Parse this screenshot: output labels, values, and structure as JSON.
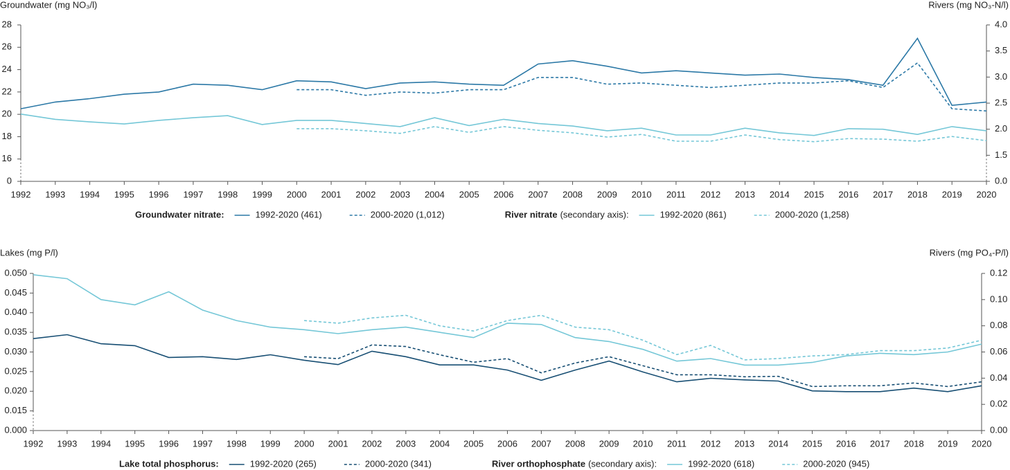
{
  "chart_data": [
    {
      "type": "line",
      "ylabel": "Groundwater (mg NO₃/l)",
      "y2label": "Rivers (mg NO₃-N/l)",
      "x": [
        1992,
        1993,
        1994,
        1995,
        1996,
        1997,
        1998,
        1999,
        2000,
        2001,
        2002,
        2003,
        2004,
        2005,
        2006,
        2007,
        2008,
        2009,
        2010,
        2011,
        2012,
        2013,
        2014,
        2015,
        2016,
        2017,
        2018,
        2019,
        2020
      ],
      "xlim": [
        1992,
        2020
      ],
      "xticks": [
        1992,
        1993,
        1994,
        1995,
        1996,
        1997,
        1998,
        1999,
        2000,
        2001,
        2002,
        2003,
        2004,
        2005,
        2006,
        2007,
        2008,
        2009,
        2010,
        2011,
        2012,
        2013,
        2014,
        2015,
        2016,
        2017,
        2018,
        2019,
        2020
      ],
      "ylim": [
        0,
        28
      ],
      "yticks": [
        0,
        16,
        18,
        20,
        22,
        24,
        26,
        28
      ],
      "y_break": true,
      "y2lim": [
        0,
        4
      ],
      "y2ticks": [
        {
          "value": 0,
          "label": "0.0"
        },
        1.5,
        {
          "value": 2,
          "label": "2.0"
        },
        2.5,
        {
          "value": 3,
          "label": "3.0"
        },
        3.5,
        {
          "value": 4,
          "label": "4.0"
        }
      ],
      "y2_break": true,
      "legend_groups": [
        {
          "title": "Groundwater nitrate:"
        },
        {
          "title": "River nitrate",
          "subtitle": "(secondary axis):"
        }
      ],
      "series": [
        {
          "name": "1992-2020 (461)",
          "color": "#2b78a6",
          "style": "solid",
          "values": [
            20.5,
            21.1,
            21.4,
            21.8,
            22.0,
            22.7,
            22.6,
            22.2,
            23.0,
            22.9,
            22.3,
            22.8,
            22.9,
            22.7,
            22.6,
            24.5,
            24.8,
            24.3,
            23.7,
            23.9,
            23.7,
            23.5,
            23.6,
            23.3,
            23.1,
            22.6,
            26.8,
            20.8,
            21.1
          ]
        },
        {
          "name": "2000-2020 (1,012)",
          "color": "#2b78a6",
          "style": "dashed",
          "values": [
            null,
            null,
            null,
            null,
            null,
            null,
            null,
            null,
            22.2,
            22.2,
            21.7,
            22.0,
            21.9,
            22.2,
            22.2,
            23.3,
            23.3,
            22.7,
            22.8,
            22.6,
            22.4,
            22.6,
            22.8,
            22.8,
            23.0,
            22.4,
            24.6,
            20.5,
            20.3
          ]
        },
        {
          "name": "1992-2020 (861)",
          "color": "#74c7d7",
          "style": "solid",
          "axis": "y2",
          "values": [
            2.29,
            2.19,
            2.14,
            2.1,
            2.17,
            2.22,
            2.26,
            2.09,
            2.17,
            2.17,
            2.11,
            2.05,
            2.22,
            2.07,
            2.19,
            2.11,
            2.06,
            1.97,
            2.02,
            1.89,
            1.89,
            2.02,
            1.93,
            1.88,
            2.01,
            2.0,
            1.9,
            2.05,
            1.97
          ]
        },
        {
          "name": "2000-2020 (1,258)",
          "color": "#74c7d7",
          "style": "dashed",
          "axis": "y2",
          "values": [
            null,
            null,
            null,
            null,
            null,
            null,
            null,
            null,
            2.01,
            2.01,
            1.97,
            1.92,
            2.05,
            1.94,
            2.05,
            1.98,
            1.93,
            1.85,
            1.9,
            1.77,
            1.77,
            1.89,
            1.8,
            1.76,
            1.82,
            1.81,
            1.77,
            1.86,
            1.78
          ]
        }
      ]
    },
    {
      "type": "line",
      "ylabel": "Lakes (mg P/l)",
      "y2label": "Rivers (mg PO₄-P/l)",
      "x": [
        1992,
        1993,
        1994,
        1995,
        1996,
        1997,
        1998,
        1999,
        2000,
        2001,
        2002,
        2003,
        2004,
        2005,
        2006,
        2007,
        2008,
        2009,
        2010,
        2011,
        2012,
        2013,
        2014,
        2015,
        2016,
        2017,
        2018,
        2019,
        2020
      ],
      "xlim": [
        1992,
        2020
      ],
      "xticks": [
        1992,
        1993,
        1994,
        1995,
        1996,
        1997,
        1998,
        1999,
        2000,
        2001,
        2002,
        2003,
        2004,
        2005,
        2006,
        2007,
        2008,
        2009,
        2010,
        2011,
        2012,
        2013,
        2014,
        2015,
        2016,
        2017,
        2018,
        2019,
        2020
      ],
      "ylim": [
        0,
        0.05
      ],
      "yticks": [
        {
          "value": 0,
          "label": "0.000"
        },
        0.015,
        {
          "value": 0.02,
          "label": "0.020"
        },
        0.025,
        {
          "value": 0.03,
          "label": "0.030"
        },
        0.035,
        {
          "value": 0.04,
          "label": "0.040"
        },
        0.045,
        {
          "value": 0.05,
          "label": "0.050"
        }
      ],
      "y_break": true,
      "y2lim": [
        0,
        0.12
      ],
      "y2ticks": [
        {
          "value": 0,
          "label": "0.00"
        },
        0.02,
        0.04,
        0.06,
        0.08,
        {
          "value": 0.1,
          "label": "0.10"
        },
        0.12
      ],
      "y2_break": false,
      "legend_groups": [
        {
          "title": "Lake total phosphorus:"
        },
        {
          "title": "River orthophosphate",
          "subtitle": "(secondary axis):"
        }
      ],
      "series": [
        {
          "name": "1992-2020 (265)",
          "color": "#174e73",
          "style": "solid",
          "values": [
            0.0334,
            0.0344,
            0.0321,
            0.0316,
            0.0286,
            0.0288,
            0.0281,
            0.0293,
            0.0279,
            0.0268,
            0.0302,
            0.0288,
            0.0267,
            0.0267,
            0.0254,
            0.0228,
            0.0254,
            0.0277,
            0.0249,
            0.0224,
            0.0233,
            0.0229,
            0.0226,
            0.0201,
            0.0199,
            0.0199,
            0.0208,
            0.0199,
            0.0214
          ]
        },
        {
          "name": "2000-2020 (341)",
          "color": "#174e73",
          "style": "dashed",
          "values": [
            null,
            null,
            null,
            null,
            null,
            null,
            null,
            null,
            0.0288,
            0.0283,
            0.0318,
            0.0314,
            0.0293,
            0.0274,
            0.0283,
            0.0247,
            0.0272,
            0.0288,
            0.0265,
            0.0242,
            0.0242,
            0.0237,
            0.0238,
            0.0212,
            0.0214,
            0.0214,
            0.0221,
            0.0212,
            0.0224
          ]
        },
        {
          "name": "1992-2020 (618)",
          "color": "#74c7d7",
          "style": "solid",
          "axis": "y2",
          "values": [
            0.119,
            0.116,
            0.1,
            0.096,
            0.106,
            0.092,
            0.084,
            0.079,
            0.077,
            0.074,
            0.077,
            0.079,
            0.075,
            0.071,
            0.082,
            0.081,
            0.071,
            0.068,
            0.062,
            0.053,
            0.055,
            0.05,
            0.05,
            0.052,
            0.057,
            0.059,
            0.058,
            0.06,
            0.066
          ]
        },
        {
          "name": "2000-2020 (945)",
          "color": "#74c7d7",
          "style": "dashed",
          "axis": "y2",
          "values": [
            null,
            null,
            null,
            null,
            null,
            null,
            null,
            null,
            0.084,
            0.082,
            0.086,
            0.088,
            0.08,
            0.076,
            0.084,
            0.088,
            0.079,
            0.077,
            0.069,
            0.058,
            0.065,
            0.054,
            0.055,
            0.057,
            0.058,
            0.061,
            0.061,
            0.063,
            0.069
          ]
        }
      ]
    }
  ]
}
